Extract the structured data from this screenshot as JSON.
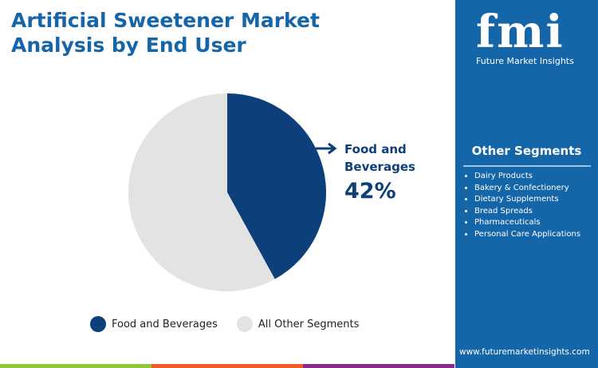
{
  "title_line1": "Artificial Sweetener Market",
  "title_line2": "Analysis by End User",
  "brand": {
    "logo": "fmi",
    "name": "Future Market Insights",
    "url": "www.futuremarketinsights.com"
  },
  "sidebar": {
    "title": "Other Segments",
    "items": [
      "Dairy Products",
      "Bakery & Confectionery",
      "Dietary Supplements",
      "Bread Spreads",
      "Pharmaceuticals",
      "Personal Care Applications"
    ]
  },
  "colors": {
    "primary": "#0d3f7a",
    "other": "#e3e3e3",
    "sidebar": "#1566a9",
    "bars": [
      "#8dc63f",
      "#f05a28",
      "#8b2c8a"
    ]
  },
  "chart_data": {
    "type": "pie",
    "categories": [
      "Food and Beverages",
      "All Other Segments"
    ],
    "values": [
      42,
      58
    ],
    "callout": {
      "label_line1": "Food and",
      "label_line2": "Beverages",
      "value": "42%"
    },
    "legend": [
      "Food and Beverages",
      "All Other Segments"
    ],
    "legend_position": "bottom"
  }
}
